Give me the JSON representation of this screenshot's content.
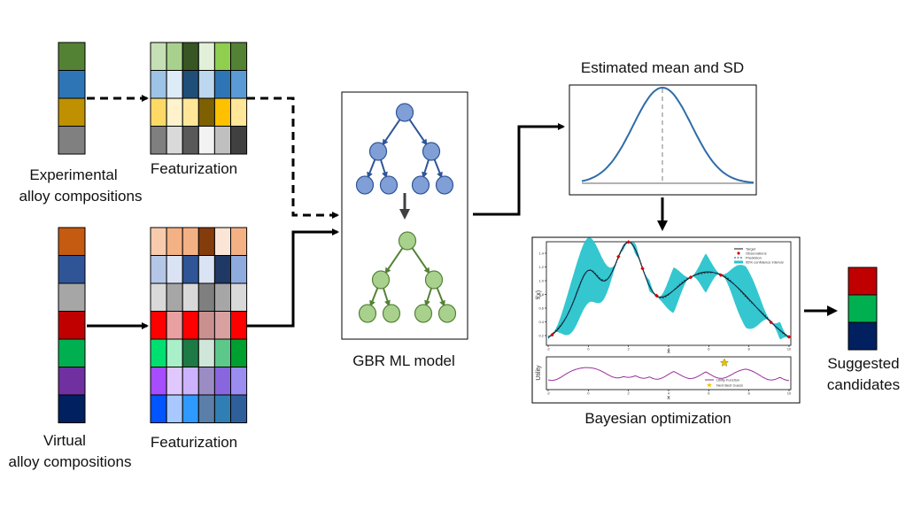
{
  "labels": {
    "experimental": [
      "Experimental",
      "alloy compositions"
    ],
    "virtual": [
      "Virtual",
      "alloy compositions"
    ],
    "featurization_top": "Featurization",
    "featurization_bottom": "Featurization",
    "model": "GBR ML model",
    "mean_sd": "Estimated mean and SD",
    "bayes": "Bayesian optimization",
    "suggested": [
      "Suggested",
      "candidates"
    ]
  },
  "colors": {
    "tree_top_fill": "#7f9fd6",
    "tree_top_stroke": "#2f5597",
    "tree_bottom_fill": "#a9d18e",
    "tree_bottom_stroke": "#548235",
    "gaussian": "#2e6ca8",
    "band": "#29c4cc"
  },
  "experimental_column": [
    "#548235",
    "#2e75b6",
    "#bf9000",
    "#808080"
  ],
  "experimental_features": [
    [
      "#c5e0b4",
      "#a9d18e",
      "#375623",
      "#e2f0d9",
      "#8fce4f",
      "#548235"
    ],
    [
      "#9dc3e6",
      "#ddebf7",
      "#1f4e79",
      "#bdd7ee",
      "#2e75b6",
      "#5b9bd5"
    ],
    [
      "#ffd966",
      "#fff2cc",
      "#ffe699",
      "#7f6000",
      "#ffc000",
      "#ffe699"
    ],
    [
      "#7f7f7f",
      "#d9d9d9",
      "#595959",
      "#f2f2f2",
      "#bfbfbf",
      "#404040"
    ]
  ],
  "virtual_column": [
    "#c55a11",
    "#2f5597",
    "#a6a6a6",
    "#c00000",
    "#00b050",
    "#7030a0",
    "#002060"
  ],
  "virtual_features": [
    [
      "#f8cbad",
      "#f4b183",
      "#f4b183",
      "#843c0c",
      "#fbe5d6",
      "#f4b183"
    ],
    [
      "#b4c7e7",
      "#dae3f3",
      "#2f5597",
      "#dae3f3",
      "#1f3864",
      "#8faadc"
    ],
    [
      "#d9d9d9",
      "#a6a6a6",
      "#d9d9d9",
      "#7f7f7f",
      "#a6a6a6",
      "#d9d9d9"
    ],
    [
      "#ff0000",
      "#e8a0a0",
      "#ff0000",
      "#c99090",
      "#d9a0a0",
      "#ff0000"
    ],
    [
      "#00e070",
      "#a9f0c8",
      "#1e7a45",
      "#cfe6d8",
      "#5cc88a",
      "#00a030"
    ],
    [
      "#a64dff",
      "#e0c8ff",
      "#cdb3ff",
      "#9b8cc4",
      "#8866dd",
      "#9b8cf0"
    ],
    [
      "#0055ff",
      "#a9c8ff",
      "#2e9aff",
      "#5b7fa8",
      "#2f7fb5",
      "#2f5f9a"
    ]
  ],
  "suggested_column": [
    "#c00000",
    "#00b050",
    "#002060"
  ],
  "gp_plot": {
    "ylabel": "f(x)",
    "xlabel": "x",
    "legend": [
      "Target",
      "Observations",
      "Prediction",
      "95% confidence interval"
    ],
    "xticks": [
      "-2",
      "0",
      "2",
      "4",
      "6",
      "8",
      "10"
    ],
    "yticks": [
      "0.2",
      "0.4",
      "0.6",
      "0.8",
      "1.0",
      "1.2",
      "1.4"
    ]
  },
  "utility_plot": {
    "ylabel": "Utility",
    "xlabel": "x",
    "legend": [
      "Utility Function",
      "Next Best Guess"
    ],
    "xticks": [
      "-2",
      "0",
      "2",
      "4",
      "6",
      "8",
      "10"
    ]
  }
}
